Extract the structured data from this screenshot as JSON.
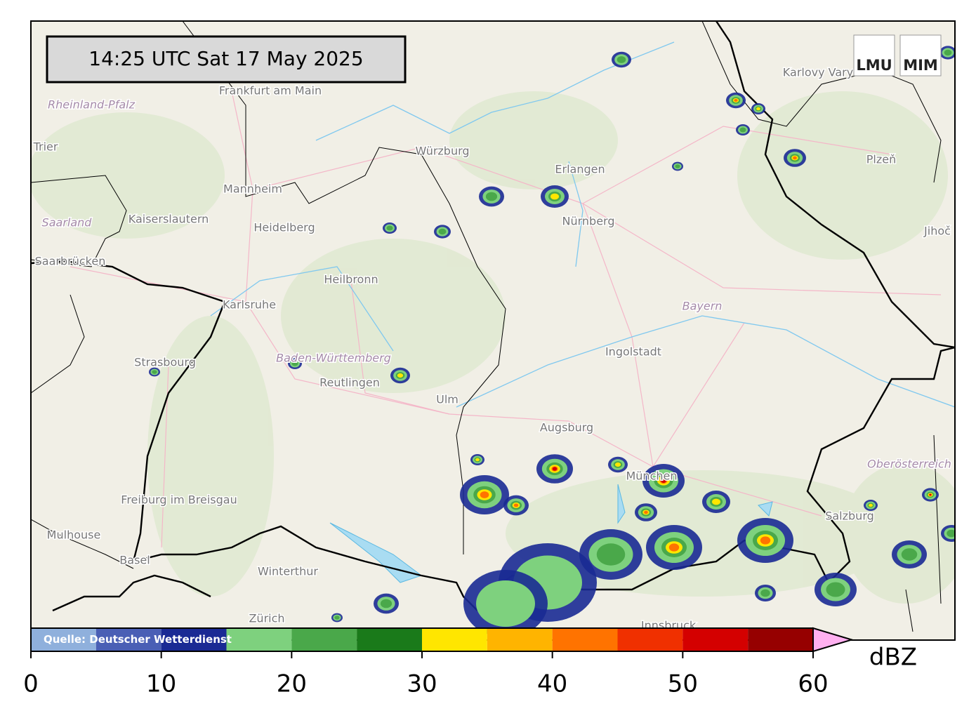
{
  "timestamp": "14:25 UTC  Sat 17 May 2025",
  "logos": [
    "LMU",
    "MIM"
  ],
  "map_labels": [
    "Frankfurt am Main",
    "Rheinland-Pfalz",
    "Trier",
    "Mannheim",
    "Kaiserslautern",
    "Heidelberg",
    "Saarland",
    "Saarbrücken",
    "Karlsruhe",
    "Heilbronn",
    "Würzburg",
    "Erlangen",
    "Nürnberg",
    "Karlovy Vary",
    "Plzeň",
    "Jihoč",
    "Bayern",
    "Ingolstadt",
    "Baden-Württemberg",
    "Reutlingen",
    "Strasbourg",
    "Ulm",
    "Augsburg",
    "München",
    "Oberösterreich",
    "Salzburg",
    "Freiburg im Breisgau",
    "Mulhouse",
    "Basel",
    "Winterthur",
    "Zürich",
    "Innsbruck"
  ],
  "colorbar": {
    "source": "Quelle: Deutscher Wetterdienst",
    "unit": "dBZ",
    "lim": [
      0,
      60
    ],
    "ticks": [
      0,
      10,
      20,
      30,
      40,
      50,
      60
    ],
    "bounds": [
      0,
      5,
      10,
      15,
      20,
      25,
      30,
      35,
      40,
      45,
      50,
      55,
      60
    ],
    "colors": [
      "#8fb0dc",
      "#4a5fb5",
      "#1a2a94",
      "#7ed17e",
      "#4aa84a",
      "#1a7a1a",
      "#ffe600",
      "#ffb400",
      "#ff7300",
      "#f03000",
      "#d40000",
      "#960000"
    ],
    "extend_color": "#ffb0f0"
  }
}
